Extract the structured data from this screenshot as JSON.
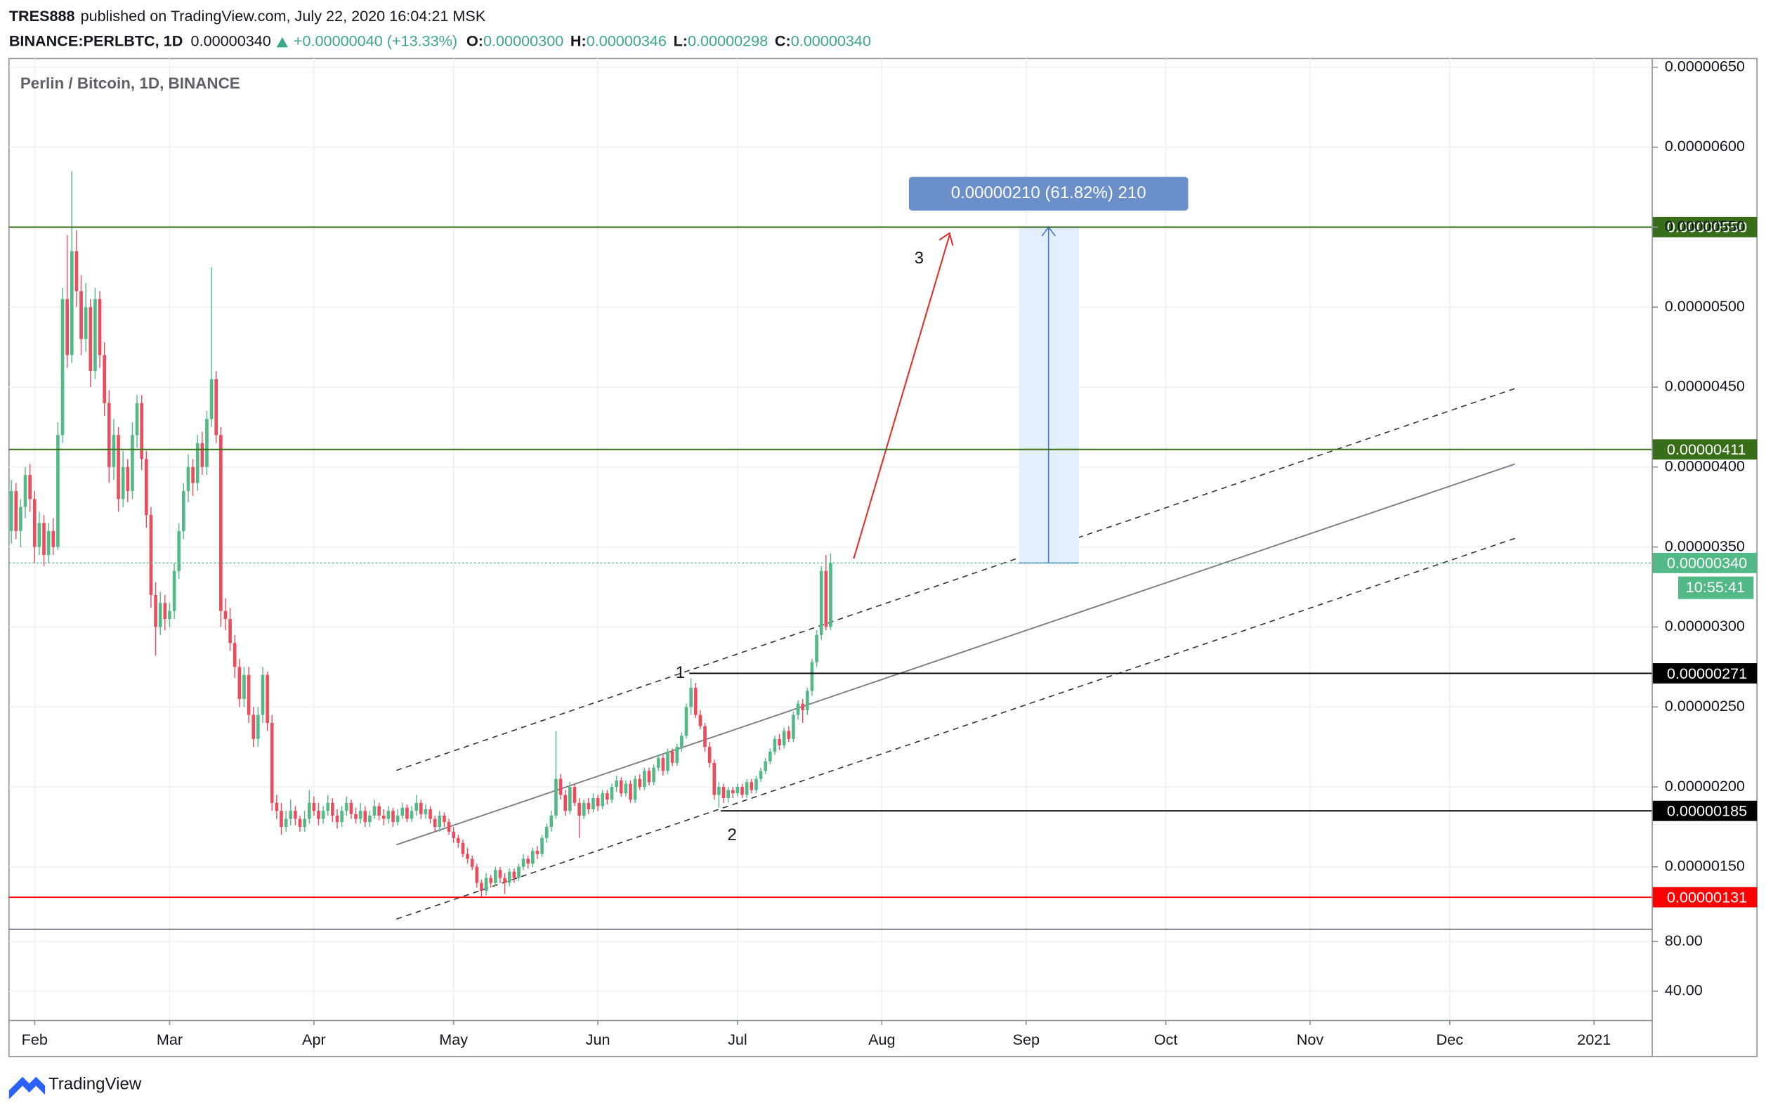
{
  "header": {
    "user": "TRES888",
    "published": "published on TradingView.com, July 22, 2020 16:04:21 MSK"
  },
  "symbol": {
    "name": "BINANCE:PERLBTC, 1D",
    "last": "0.00000340",
    "change": "+0.00000040 (+13.33%)",
    "ohlc": [
      {
        "label": "O:",
        "value": "0.00000300"
      },
      {
        "label": "H:",
        "value": "0.00000346"
      },
      {
        "label": "L:",
        "value": "0.00000298"
      },
      {
        "label": "C:",
        "value": "0.00000340"
      }
    ]
  },
  "chart_data": {
    "type": "candlestick",
    "title": "Perlin / Bitcoin, 1D, BINANCE",
    "up_color": "#53b987",
    "down_color": "#eb4d5c",
    "grid": true,
    "xlim": [
      -0.5,
      352.5
    ],
    "xticks": [
      {
        "value": 5,
        "label": "Feb"
      },
      {
        "value": 34,
        "label": "Mar"
      },
      {
        "value": 65,
        "label": "Apr"
      },
      {
        "value": 95,
        "label": "May"
      },
      {
        "value": 126,
        "label": "Jun"
      },
      {
        "value": 156,
        "label": "Jul"
      },
      {
        "value": 187,
        "label": "Aug"
      },
      {
        "value": 218,
        "label": "Sep"
      },
      {
        "value": 248,
        "label": "Oct"
      },
      {
        "value": 279,
        "label": "Nov"
      },
      {
        "value": 309,
        "label": "Dec"
      },
      {
        "value": 340,
        "label": "2021"
      }
    ],
    "ylim": [
      1.11e-06,
      6.554e-06
    ],
    "yticks": [
      {
        "value": 1.5e-06,
        "label": "0.00000150"
      },
      {
        "value": 2e-06,
        "label": "0.00000200"
      },
      {
        "value": 2.5e-06,
        "label": "0.00000250"
      },
      {
        "value": 3e-06,
        "label": "0.00000300"
      },
      {
        "value": 3.5e-06,
        "label": "0.00000350"
      },
      {
        "value": 4e-06,
        "label": "0.00000400"
      },
      {
        "value": 4.5e-06,
        "label": "0.00000450"
      },
      {
        "value": 5e-06,
        "label": "0.00000500"
      },
      {
        "value": 5.5e-06,
        "label": "0.00000550"
      },
      {
        "value": 6e-06,
        "label": "0.00000600"
      },
      {
        "value": 6.5e-06,
        "label": "0.00000650"
      }
    ],
    "candles": [
      [
        3.6e-06,
        3.92e-06,
        3.52e-06,
        3.85e-06
      ],
      [
        3.85e-06,
        3.9e-06,
        3.55e-06,
        3.6e-06
      ],
      [
        3.6e-06,
        3.8e-06,
        3.5e-06,
        3.75e-06
      ],
      [
        3.75e-06,
        4e-06,
        3.68e-06,
        3.95e-06
      ],
      [
        3.95e-06,
        4.02e-06,
        3.72e-06,
        3.8e-06
      ],
      [
        3.8e-06,
        3.85e-06,
        3.4e-06,
        3.5e-06
      ],
      [
        3.5e-06,
        3.72e-06,
        3.45e-06,
        3.65e-06
      ],
      [
        3.65e-06,
        3.7e-06,
        3.38e-06,
        3.45e-06
      ],
      [
        3.45e-06,
        3.65e-06,
        3.4e-06,
        3.6e-06
      ],
      [
        3.6e-06,
        3.68e-06,
        3.45e-06,
        3.5e-06
      ],
      [
        3.5e-06,
        4.28e-06,
        3.48e-06,
        4.2e-06
      ],
      [
        4.2e-06,
        5.12e-06,
        4.15e-06,
        5.05e-06
      ],
      [
        5.05e-06,
        5.45e-06,
        4.62e-06,
        4.7e-06
      ],
      [
        4.7e-06,
        5.85e-06,
        4.65e-06,
        5.35e-06
      ],
      [
        5.35e-06,
        5.48e-06,
        5e-06,
        5.1e-06
      ],
      [
        5.1e-06,
        5.2e-06,
        4.7e-06,
        4.8e-06
      ],
      [
        4.8e-06,
        5.15e-06,
        4.72e-06,
        5e-06
      ],
      [
        5e-06,
        5.05e-06,
        4.5e-06,
        4.6e-06
      ],
      [
        4.6e-06,
        5.12e-06,
        4.55e-06,
        5.05e-06
      ],
      [
        5.05e-06,
        5.1e-06,
        4.62e-06,
        4.7e-06
      ],
      [
        4.7e-06,
        4.78e-06,
        4.32e-06,
        4.4e-06
      ],
      [
        4.4e-06,
        4.48e-06,
        3.9e-06,
        4e-06
      ],
      [
        4e-06,
        4.3e-06,
        3.92e-06,
        4.2e-06
      ],
      [
        4.2e-06,
        4.25e-06,
        3.72e-06,
        3.8e-06
      ],
      [
        3.8e-06,
        4.1e-06,
        3.75e-06,
        4e-06
      ],
      [
        4e-06,
        4.05e-06,
        3.78e-06,
        3.85e-06
      ],
      [
        3.85e-06,
        4.28e-06,
        3.8e-06,
        4.2e-06
      ],
      [
        4.2e-06,
        4.45e-06,
        4.12e-06,
        4.4e-06
      ],
      [
        4.4e-06,
        4.45e-06,
        3.98e-06,
        4.05e-06
      ],
      [
        4.05e-06,
        4.1e-06,
        3.62e-06,
        3.7e-06
      ],
      [
        3.7e-06,
        3.75e-06,
        3.12e-06,
        3.2e-06
      ],
      [
        3.2e-06,
        3.28e-06,
        2.82e-06,
        3e-06
      ],
      [
        3e-06,
        3.22e-06,
        2.95e-06,
        3.15e-06
      ],
      [
        3.15e-06,
        3.2e-06,
        2.98e-06,
        3.05e-06
      ],
      [
        3.05e-06,
        3.15e-06,
        3e-06,
        3.1e-06
      ],
      [
        3.1e-06,
        3.4e-06,
        3.05e-06,
        3.35e-06
      ],
      [
        3.35e-06,
        3.65e-06,
        3.3e-06,
        3.6e-06
      ],
      [
        3.6e-06,
        3.9e-06,
        3.55e-06,
        3.85e-06
      ],
      [
        3.85e-06,
        4.08e-06,
        3.78e-06,
        4e-06
      ],
      [
        4e-06,
        4.05e-06,
        3.82e-06,
        3.9e-06
      ],
      [
        3.9e-06,
        4.2e-06,
        3.85e-06,
        4.15e-06
      ],
      [
        4.15e-06,
        4.22e-06,
        3.95e-06,
        4e-06
      ],
      [
        4e-06,
        4.35e-06,
        3.95e-06,
        4.3e-06
      ],
      [
        4.3e-06,
        5.25e-06,
        4.25e-06,
        4.55e-06
      ],
      [
        4.55e-06,
        4.6e-06,
        4.15e-06,
        4.2e-06
      ],
      [
        4.2e-06,
        4.25e-06,
        3e-06,
        3.1e-06
      ],
      [
        3.1e-06,
        3.18e-06,
        2.98e-06,
        3.05e-06
      ],
      [
        3.05e-06,
        3.12e-06,
        2.85e-06,
        2.9e-06
      ],
      [
        2.9e-06,
        2.95e-06,
        2.68e-06,
        2.75e-06
      ],
      [
        2.75e-06,
        2.8e-06,
        2.5e-06,
        2.55e-06
      ],
      [
        2.55e-06,
        2.75e-06,
        2.5e-06,
        2.7e-06
      ],
      [
        2.7e-06,
        2.75e-06,
        2.4e-06,
        2.45e-06
      ],
      [
        2.45e-06,
        2.5e-06,
        2.25e-06,
        2.3e-06
      ],
      [
        2.3e-06,
        2.5e-06,
        2.25e-06,
        2.45e-06
      ],
      [
        2.45e-06,
        2.75e-06,
        2.4e-06,
        2.7e-06
      ],
      [
        2.7e-06,
        2.72e-06,
        2.35e-06,
        2.4e-06
      ],
      [
        2.4e-06,
        2.45e-06,
        1.85e-06,
        1.9e-06
      ],
      [
        1.9e-06,
        1.95e-06,
        1.8e-06,
        1.85e-06
      ],
      [
        1.85e-06,
        1.9e-06,
        1.7e-06,
        1.75e-06
      ],
      [
        1.75e-06,
        1.85e-06,
        1.72e-06,
        1.8e-06
      ],
      [
        1.8e-06,
        1.92e-06,
        1.76e-06,
        1.85e-06
      ],
      [
        1.85e-06,
        1.88e-06,
        1.76e-06,
        1.8e-06
      ],
      [
        1.8e-06,
        1.82e-06,
        1.72e-06,
        1.75e-06
      ],
      [
        1.75e-06,
        1.85e-06,
        1.72e-06,
        1.8e-06
      ],
      [
        1.8e-06,
        1.98e-06,
        1.77e-06,
        1.9e-06
      ],
      [
        1.9e-06,
        1.94e-06,
        1.82e-06,
        1.85e-06
      ],
      [
        1.85e-06,
        1.9e-06,
        1.76e-06,
        1.8e-06
      ],
      [
        1.8e-06,
        1.88e-06,
        1.77e-06,
        1.85e-06
      ],
      [
        1.85e-06,
        1.95e-06,
        1.82e-06,
        1.9e-06
      ],
      [
        1.9e-06,
        1.93e-06,
        1.78e-06,
        1.82e-06
      ],
      [
        1.82e-06,
        1.86e-06,
        1.74e-06,
        1.78e-06
      ],
      [
        1.78e-06,
        1.88e-06,
        1.75e-06,
        1.85e-06
      ],
      [
        1.85e-06,
        1.94e-06,
        1.82e-06,
        1.9e-06
      ],
      [
        1.9e-06,
        1.92e-06,
        1.8e-06,
        1.83e-06
      ],
      [
        1.83e-06,
        1.87e-06,
        1.77e-06,
        1.8e-06
      ],
      [
        1.8e-06,
        1.9e-06,
        1.77e-06,
        1.85e-06
      ],
      [
        1.85e-06,
        1.88e-06,
        1.75e-06,
        1.78e-06
      ],
      [
        1.78e-06,
        1.85e-06,
        1.75e-06,
        1.82e-06
      ],
      [
        1.82e-06,
        1.92e-06,
        1.8e-06,
        1.88e-06
      ],
      [
        1.88e-06,
        1.9e-06,
        1.79e-06,
        1.82e-06
      ],
      [
        1.82e-06,
        1.86e-06,
        1.76e-06,
        1.8e-06
      ],
      [
        1.8e-06,
        1.88e-06,
        1.77e-06,
        1.85e-06
      ],
      [
        1.85e-06,
        1.87e-06,
        1.75e-06,
        1.78e-06
      ],
      [
        1.78e-06,
        1.86e-06,
        1.76e-06,
        1.82e-06
      ],
      [
        1.82e-06,
        1.9e-06,
        1.8e-06,
        1.87e-06
      ],
      [
        1.87e-06,
        1.89e-06,
        1.78e-06,
        1.8e-06
      ],
      [
        1.8e-06,
        1.88e-06,
        1.78e-06,
        1.85e-06
      ],
      [
        1.85e-06,
        1.95e-06,
        1.82e-06,
        1.9e-06
      ],
      [
        1.9e-06,
        1.92e-06,
        1.8e-06,
        1.83e-06
      ],
      [
        1.83e-06,
        1.89e-06,
        1.8e-06,
        1.86e-06
      ],
      [
        1.86e-06,
        1.88e-06,
        1.77e-06,
        1.8e-06
      ],
      [
        1.8e-06,
        1.82e-06,
        1.72e-06,
        1.75e-06
      ],
      [
        1.75e-06,
        1.85e-06,
        1.72e-06,
        1.82e-06
      ],
      [
        1.82e-06,
        1.84e-06,
        1.75e-06,
        1.78e-06
      ],
      [
        1.78e-06,
        1.8e-06,
        1.7e-06,
        1.72e-06
      ],
      [
        1.72e-06,
        1.75e-06,
        1.65e-06,
        1.68e-06
      ],
      [
        1.68e-06,
        1.7e-06,
        1.62e-06,
        1.65e-06
      ],
      [
        1.65e-06,
        1.67e-06,
        1.56e-06,
        1.58e-06
      ],
      [
        1.58e-06,
        1.62e-06,
        1.52e-06,
        1.55e-06
      ],
      [
        1.55e-06,
        1.57e-06,
        1.48e-06,
        1.5e-06
      ],
      [
        1.5e-06,
        1.52e-06,
        1.37e-06,
        1.4e-06
      ],
      [
        1.4e-06,
        1.42e-06,
        1.31e-06,
        1.35e-06
      ],
      [
        1.35e-06,
        1.46e-06,
        1.32e-06,
        1.43e-06
      ],
      [
        1.43e-06,
        1.45e-06,
        1.37e-06,
        1.4e-06
      ],
      [
        1.4e-06,
        1.5e-06,
        1.38e-06,
        1.48e-06
      ],
      [
        1.48e-06,
        1.5e-06,
        1.4e-06,
        1.43e-06
      ],
      [
        1.43e-06,
        1.46e-06,
        1.33e-06,
        1.4e-06
      ],
      [
        1.4e-06,
        1.49e-06,
        1.38e-06,
        1.47e-06
      ],
      [
        1.47e-06,
        1.49e-06,
        1.4e-06,
        1.43e-06
      ],
      [
        1.43e-06,
        1.52e-06,
        1.41e-06,
        1.5e-06
      ],
      [
        1.5e-06,
        1.58e-06,
        1.48e-06,
        1.55e-06
      ],
      [
        1.55e-06,
        1.57e-06,
        1.49e-06,
        1.52e-06
      ],
      [
        1.52e-06,
        1.62e-06,
        1.5e-06,
        1.6e-06
      ],
      [
        1.6e-06,
        1.63e-06,
        1.55e-06,
        1.58e-06
      ],
      [
        1.58e-06,
        1.7e-06,
        1.56e-06,
        1.68e-06
      ],
      [
        1.68e-06,
        1.77e-06,
        1.65e-06,
        1.75e-06
      ],
      [
        1.75e-06,
        1.85e-06,
        1.72e-06,
        1.82e-06
      ],
      [
        1.82e-06,
        2.35e-06,
        1.8e-06,
        2.05e-06
      ],
      [
        2.05e-06,
        2.08e-06,
        1.92e-06,
        1.95e-06
      ],
      [
        1.95e-06,
        1.98e-06,
        1.82e-06,
        1.85e-06
      ],
      [
        1.85e-06,
        2.03e-06,
        1.83e-06,
        2e-06
      ],
      [
        2e-06,
        2.02e-06,
        1.88e-06,
        1.9e-06
      ],
      [
        1.9e-06,
        1.93e-06,
        1.68e-06,
        1.82e-06
      ],
      [
        1.82e-06,
        1.92e-06,
        1.8e-06,
        1.9e-06
      ],
      [
        1.9e-06,
        1.93e-06,
        1.83e-06,
        1.86e-06
      ],
      [
        1.86e-06,
        1.96e-06,
        1.84e-06,
        1.93e-06
      ],
      [
        1.93e-06,
        1.95e-06,
        1.85e-06,
        1.88e-06
      ],
      [
        1.88e-06,
        1.98e-06,
        1.86e-06,
        1.96e-06
      ],
      [
        1.96e-06,
        1.98e-06,
        1.89e-06,
        1.92e-06
      ],
      [
        1.92e-06,
        2.02e-06,
        1.9e-06,
        2e-06
      ],
      [
        2e-06,
        2.07e-06,
        1.97e-06,
        2.04e-06
      ],
      [
        2.04e-06,
        2.06e-06,
        1.94e-06,
        1.96e-06
      ],
      [
        1.96e-06,
        2.04e-06,
        1.94e-06,
        2.02e-06
      ],
      [
        2.02e-06,
        2.04e-06,
        1.9e-06,
        1.92e-06
      ],
      [
        1.92e-06,
        2.07e-06,
        1.9e-06,
        2.05e-06
      ],
      [
        2.05e-06,
        2.08e-06,
        1.98e-06,
        2e-06
      ],
      [
        2e-06,
        2.12e-06,
        1.98e-06,
        2.1e-06
      ],
      [
        2.1e-06,
        2.12e-06,
        2.01e-06,
        2.03e-06
      ],
      [
        2.03e-06,
        2.14e-06,
        2.01e-06,
        2.12e-06
      ],
      [
        2.12e-06,
        2.2e-06,
        2.1e-06,
        2.18e-06
      ],
      [
        2.18e-06,
        2.2e-06,
        2.07e-06,
        2.1e-06
      ],
      [
        2.1e-06,
        2.24e-06,
        2.08e-06,
        2.22e-06
      ],
      [
        2.22e-06,
        2.24e-06,
        2.13e-06,
        2.15e-06
      ],
      [
        2.15e-06,
        2.27e-06,
        2.13e-06,
        2.25e-06
      ],
      [
        2.25e-06,
        2.34e-06,
        2.22e-06,
        2.32e-06
      ],
      [
        2.32e-06,
        2.52e-06,
        2.3e-06,
        2.5e-06
      ],
      [
        2.5e-06,
        2.68e-06,
        2.45e-06,
        2.62e-06
      ],
      [
        2.62e-06,
        2.65e-06,
        2.43e-06,
        2.45e-06
      ],
      [
        2.45e-06,
        2.48e-06,
        2.36e-06,
        2.38e-06
      ],
      [
        2.38e-06,
        2.4e-06,
        2.22e-06,
        2.25e-06
      ],
      [
        2.25e-06,
        2.28e-06,
        2.12e-06,
        2.15e-06
      ],
      [
        2.15e-06,
        2.17e-06,
        1.92e-06,
        1.95e-06
      ],
      [
        1.95e-06,
        2.03e-06,
        1.87e-06,
        2e-06
      ],
      [
        2e-06,
        2.02e-06,
        1.9e-06,
        1.93e-06
      ],
      [
        1.93e-06,
        2e-06,
        1.9e-06,
        1.98e-06
      ],
      [
        1.98e-06,
        2e-06,
        1.93e-06,
        1.96e-06
      ],
      [
        1.96e-06,
        2.02e-06,
        1.94e-06,
        2e-06
      ],
      [
        2e-06,
        2.02e-06,
        1.93e-06,
        1.95e-06
      ],
      [
        1.95e-06,
        2.05e-06,
        1.93e-06,
        2.03e-06
      ],
      [
        2.03e-06,
        2.05e-06,
        1.96e-06,
        1.98e-06
      ],
      [
        1.98e-06,
        2.07e-06,
        1.96e-06,
        2.05e-06
      ],
      [
        2.05e-06,
        2.12e-06,
        2.03e-06,
        2.1e-06
      ],
      [
        2.1e-06,
        2.18e-06,
        2.08e-06,
        2.16e-06
      ],
      [
        2.16e-06,
        2.24e-06,
        2.14e-06,
        2.22e-06
      ],
      [
        2.22e-06,
        2.32e-06,
        2.2e-06,
        2.3e-06
      ],
      [
        2.3e-06,
        2.33e-06,
        2.23e-06,
        2.26e-06
      ],
      [
        2.26e-06,
        2.37e-06,
        2.24e-06,
        2.35e-06
      ],
      [
        2.35e-06,
        2.38e-06,
        2.28e-06,
        2.3e-06
      ],
      [
        2.3e-06,
        2.47e-06,
        2.28e-06,
        2.45e-06
      ],
      [
        2.45e-06,
        2.54e-06,
        2.42e-06,
        2.52e-06
      ],
      [
        2.52e-06,
        2.55e-06,
        2.4e-06,
        2.48e-06
      ],
      [
        2.48e-06,
        2.62e-06,
        2.45e-06,
        2.6e-06
      ],
      [
        2.6e-06,
        2.8e-06,
        2.57e-06,
        2.78e-06
      ],
      [
        2.78e-06,
        2.98e-06,
        2.75e-06,
        2.95e-06
      ],
      [
        2.95e-06,
        3.38e-06,
        2.92e-06,
        3.35e-06
      ],
      [
        3.35e-06,
        3.45e-06,
        2.98e-06,
        3e-06
      ],
      [
        3e-06,
        3.46e-06,
        2.98e-06,
        3.4e-06
      ]
    ],
    "price_lines": [
      {
        "value": 5.5e-06,
        "label": "0.00000550",
        "color": "#386e1a"
      },
      {
        "value": 4.11e-06,
        "label": "0.00000411",
        "color": "#386e1a"
      },
      {
        "value": 2.71e-06,
        "label": "0.00000271",
        "color": "#000000"
      },
      {
        "value": 1.85e-06,
        "label": "0.00000185",
        "color": "#000000"
      },
      {
        "value": 1.31e-06,
        "label": "0.00000131",
        "color": "#ff0000"
      }
    ],
    "last_price": {
      "value": 3.4e-06,
      "label": "0.00000340",
      "countdown": "10:55:41",
      "color": "#53b987"
    },
    "measure": "0.00000210 (61.82%) 210",
    "annotations": [
      "1",
      "2",
      "3"
    ],
    "volume": {
      "ylim": [
        16.4,
        90
      ],
      "yticks": [
        {
          "value": 80,
          "label": "80.00"
        },
        {
          "value": 40,
          "label": "40.00"
        }
      ]
    }
  },
  "footer": {
    "logo": "TradingView"
  }
}
